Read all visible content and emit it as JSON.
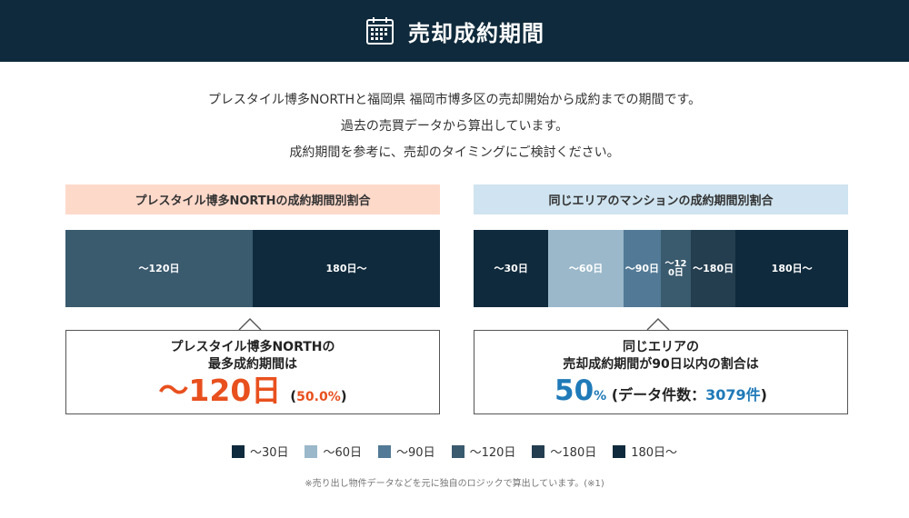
{
  "header": {
    "title": "売却成約期間",
    "icon": "calendar-icon"
  },
  "intro": {
    "line1": "プレスタイル博多NORTHと福岡県 福岡市博多区の売却開始から成約までの期間です。",
    "line2": "過去の売買データから算出しています。",
    "line3": "成約期間を参考に、売却のタイミングにご検討ください。"
  },
  "colors": {
    "d30": "#0f2a3c",
    "d60": "#9ab8ca",
    "d90": "#527a96",
    "d120": "#3a5a6e",
    "d180": "#243e50",
    "d180plus": "#0f2a3c",
    "orange": "#e8501e",
    "blue": "#1f7ab8"
  },
  "left_panel": {
    "title": "プレスタイル博多NORTHの成約期間別割合",
    "segments": [
      {
        "label": "〜120日",
        "share": 50.0,
        "color": "#3a5a6e"
      },
      {
        "label": "180日〜",
        "share": 50.0,
        "color": "#0f2a3c"
      }
    ],
    "summary": {
      "line1": "プレスタイル博多NORTHの",
      "line2": "最多成約期間は",
      "big_value": "〜120日",
      "paren_open": "(",
      "percent": "50.0%",
      "paren_close": ")"
    }
  },
  "right_panel": {
    "title": "同じエリアのマンションの成約期間別割合",
    "segments": [
      {
        "label": "〜30日",
        "share": 20,
        "color": "#0f2a3c"
      },
      {
        "label": "〜60日",
        "share": 20,
        "color": "#9ab8ca"
      },
      {
        "label": "〜90日",
        "share": 10,
        "color": "#527a96"
      },
      {
        "label": "〜120日",
        "share": 8,
        "color": "#3a5a6e"
      },
      {
        "label": "〜180日",
        "share": 12,
        "color": "#243e50"
      },
      {
        "label": "180日〜",
        "share": 30,
        "color": "#0f2a3c"
      }
    ],
    "summary": {
      "line1": "同じエリアの",
      "line2": "売却成約期間が90日以内の割合は",
      "big_value": "50",
      "big_unit": "%",
      "data_label": " (データ件数：",
      "count": "3079件",
      "paren_close": ")"
    }
  },
  "legend": [
    {
      "label": "〜30日",
      "color": "#0f2a3c"
    },
    {
      "label": "〜60日",
      "color": "#9ab8ca"
    },
    {
      "label": "〜90日",
      "color": "#527a96"
    },
    {
      "label": "〜120日",
      "color": "#3a5a6e"
    },
    {
      "label": "〜180日",
      "color": "#243e50"
    },
    {
      "label": "180日〜",
      "color": "#0f2a3c"
    }
  ],
  "note": "※売り出し物件データなどを元に独自のロジックで算出しています。(※1)"
}
